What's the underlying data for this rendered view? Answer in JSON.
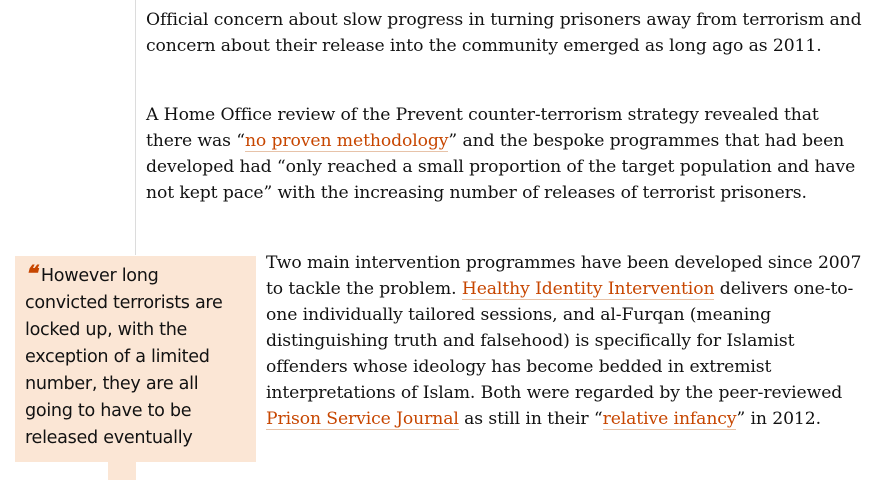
{
  "paragraphs": {
    "p1": "Official concern about slow progress in turning prisoners away from terrorism and concern about their release into the community emerged as long ago as 2011.",
    "p2": {
      "before": "A Home Office review of the Prevent counter-terrorism strategy revealed that there was “",
      "link": "no proven methodology",
      "after": "” and the bespoke programmes that had been developed had “only reached a small proportion of the target population and have not kept pace” with the increasing number of releases of terrorist prisoners."
    },
    "p3": {
      "part1": "Two main intervention programmes have been developed since 2007 to tackle the problem. ",
      "link1": "Healthy Identity Intervention",
      "part2": " delivers one-to-one individually tailored sessions, and al-Furqan (meaning distinguishing truth and falsehood) is specifically for Islamist offenders whose ideology has become bedded in extremist interpretations of Islam. Both were regarded by the peer-reviewed ",
      "link2": "Prison Service Journal",
      "part3": " as still in their “",
      "link3": "relative infancy",
      "part4": "” in 2012."
    }
  },
  "pullquote": {
    "mark": "❝",
    "text": "However long convicted terrorists are locked up, with the exception of a limited number, they are all going to have to be released eventually"
  },
  "colors": {
    "link": "#c74600",
    "quote_bg": "#fbe6d5",
    "text": "#121212"
  }
}
